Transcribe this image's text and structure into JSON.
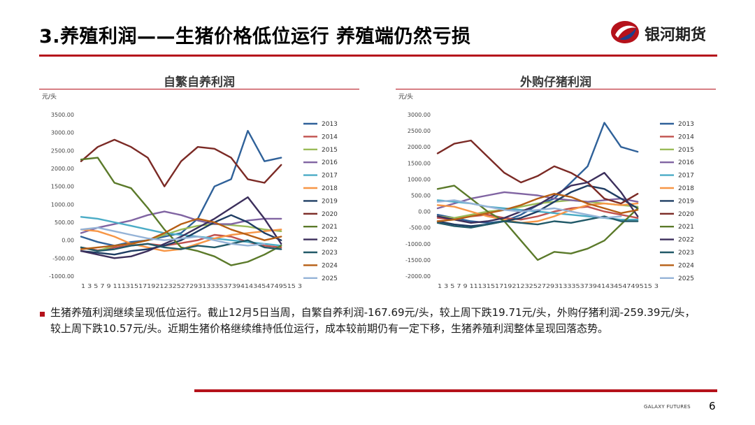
{
  "header": {
    "title": "3.养殖利润——生猪价格低位运行 养殖端仍然亏损",
    "brand": "银河期货",
    "brand_color": "#b5121b"
  },
  "chart_data": [
    {
      "type": "line",
      "title": "自繁自养利润",
      "ylabel": "元/头",
      "ylim": [
        -1000,
        3500
      ],
      "y_ticks": [
        "3500.00",
        "3000.00",
        "2500.00",
        "2000.00",
        "1500.00",
        "1000.00",
        "500.00",
        "0.00",
        "-500.00",
        "-1000.00"
      ],
      "x_ticks_label": "1 3 5 7 9 1113151719212325272931333537394143454749515 3",
      "x": [
        1,
        5,
        9,
        13,
        17,
        21,
        25,
        29,
        33,
        37,
        41,
        45,
        49,
        53
      ],
      "series": [
        {
          "name": "2013",
          "color": "#2f6199",
          "values": [
            100,
            -50,
            -150,
            -50,
            0,
            100,
            200,
            600,
            1500,
            1700,
            3050,
            2200,
            2300,
            null
          ]
        },
        {
          "name": "2014",
          "color": "#c0504d",
          "values": [
            -200,
            -280,
            -200,
            -150,
            -100,
            -150,
            -80,
            0,
            150,
            100,
            -50,
            -150,
            -200,
            null
          ]
        },
        {
          "name": "2015",
          "color": "#9bbb59",
          "values": [
            -200,
            -300,
            -150,
            -100,
            0,
            150,
            300,
            400,
            450,
            420,
            380,
            300,
            250,
            null
          ]
        },
        {
          "name": "2016",
          "color": "#8064a2",
          "values": [
            200,
            350,
            450,
            550,
            700,
            800,
            700,
            550,
            450,
            450,
            550,
            600,
            600,
            null
          ]
        },
        {
          "name": "2017",
          "color": "#4bacc6",
          "values": [
            650,
            600,
            500,
            400,
            300,
            200,
            150,
            100,
            50,
            0,
            -50,
            -100,
            -150,
            null
          ]
        },
        {
          "name": "2018",
          "color": "#f79646",
          "values": [
            300,
            250,
            100,
            -100,
            -200,
            -300,
            -250,
            -100,
            50,
            150,
            200,
            250,
            300,
            null
          ]
        },
        {
          "name": "2019",
          "color": "#1f3d63",
          "values": [
            -300,
            -350,
            -400,
            -300,
            -250,
            -150,
            0,
            250,
            500,
            700,
            500,
            200,
            0,
            null
          ]
        },
        {
          "name": "2020",
          "color": "#7b2a25",
          "values": [
            2200,
            2600,
            2800,
            2600,
            2300,
            1500,
            2200,
            2600,
            2550,
            2300,
            1700,
            1600,
            2100,
            null
          ]
        },
        {
          "name": "2021",
          "color": "#5b7a2a",
          "values": [
            2250,
            2300,
            1600,
            1450,
            900,
            300,
            -200,
            -300,
            -450,
            -700,
            -600,
            -400,
            -150,
            null
          ]
        },
        {
          "name": "2022",
          "color": "#3c2f5c",
          "values": [
            -300,
            -400,
            -500,
            -450,
            -300,
            -100,
            100,
            350,
            600,
            900,
            1200,
            600,
            -100,
            null
          ]
        },
        {
          "name": "2023",
          "color": "#215968",
          "values": [
            -200,
            -300,
            -250,
            -150,
            -100,
            -200,
            -250,
            -150,
            -200,
            -100,
            0,
            -200,
            -250,
            null
          ]
        },
        {
          "name": "2024",
          "color": "#b65e14",
          "values": [
            -250,
            -200,
            -150,
            -100,
            0,
            200,
            450,
            600,
            500,
            300,
            150,
            0,
            100,
            null
          ]
        },
        {
          "name": "2025",
          "color": "#95b3d7",
          "values": [
            300,
            350,
            250,
            150,
            50,
            0,
            50,
            100,
            0,
            -100,
            -150,
            -100,
            null,
            null
          ]
        }
      ]
    },
    {
      "type": "line",
      "title": "外购仔猪利润",
      "ylabel": "元/头",
      "ylim": [
        -2000,
        3000
      ],
      "y_ticks": [
        "3000.00",
        "2500.00",
        "2000.00",
        "1500.00",
        "1000.00",
        "500.00",
        "0.00",
        "-500.00",
        "-1000.00",
        "-1500.00",
        "-2000.00"
      ],
      "x_ticks_label": "1 3 5 7 9 1113151719212325272931333537394143454749515 3",
      "x": [
        1,
        5,
        9,
        13,
        17,
        21,
        25,
        29,
        33,
        37,
        41,
        45,
        49,
        53
      ],
      "series": [
        {
          "name": "2013",
          "color": "#2f6199",
          "values": [
            -100,
            -200,
            -300,
            -350,
            -300,
            -100,
            200,
            400,
            900,
            1400,
            2750,
            2000,
            1850,
            null
          ]
        },
        {
          "name": "2014",
          "color": "#c0504d",
          "values": [
            -200,
            -250,
            -150,
            -100,
            -200,
            -250,
            -150,
            0,
            100,
            150,
            0,
            -100,
            -200,
            null
          ]
        },
        {
          "name": "2015",
          "color": "#9bbb59",
          "values": [
            -150,
            -200,
            -100,
            0,
            50,
            150,
            250,
            300,
            350,
            300,
            250,
            200,
            150,
            null
          ]
        },
        {
          "name": "2016",
          "color": "#8064a2",
          "values": [
            100,
            250,
            400,
            500,
            600,
            550,
            500,
            400,
            350,
            300,
            350,
            400,
            300,
            null
          ]
        },
        {
          "name": "2017",
          "color": "#4bacc6",
          "values": [
            350,
            300,
            250,
            150,
            100,
            50,
            0,
            -50,
            -100,
            -150,
            -200,
            -250,
            -250,
            null
          ]
        },
        {
          "name": "2018",
          "color": "#f79646",
          "values": [
            200,
            150,
            0,
            -150,
            -250,
            -350,
            -300,
            -150,
            50,
            200,
            250,
            200,
            250,
            null
          ]
        },
        {
          "name": "2019",
          "color": "#1f3d63",
          "values": [
            -300,
            -400,
            -450,
            -400,
            -300,
            -200,
            0,
            300,
            600,
            800,
            700,
            400,
            100,
            null
          ]
        },
        {
          "name": "2020",
          "color": "#7b2a25",
          "values": [
            1800,
            2100,
            2200,
            1700,
            1200,
            900,
            1100,
            1400,
            1200,
            900,
            400,
            250,
            550,
            null
          ]
        },
        {
          "name": "2021",
          "color": "#5b7a2a",
          "values": [
            700,
            800,
            400,
            0,
            -300,
            -900,
            -1500,
            -1250,
            -1300,
            -1150,
            -900,
            -400,
            100,
            null
          ]
        },
        {
          "name": "2022",
          "color": "#3c2f5c",
          "values": [
            -150,
            -250,
            -350,
            -300,
            -200,
            0,
            200,
            500,
            800,
            900,
            1200,
            600,
            -150,
            null
          ]
        },
        {
          "name": "2023",
          "color": "#215968",
          "values": [
            -350,
            -450,
            -500,
            -400,
            -300,
            -350,
            -400,
            -300,
            -350,
            -250,
            -150,
            -300,
            -300,
            null
          ]
        },
        {
          "name": "2024",
          "color": "#b65e14",
          "values": [
            -300,
            -250,
            -150,
            -50,
            50,
            200,
            400,
            550,
            450,
            250,
            100,
            -50,
            50,
            null
          ]
        },
        {
          "name": "2025",
          "color": "#95b3d7",
          "values": [
            300,
            350,
            250,
            150,
            50,
            0,
            50,
            100,
            0,
            -100,
            -200,
            -150,
            null,
            null
          ]
        }
      ]
    }
  ],
  "body_text": "生猪养殖利润继续呈现低位运行。截止12月5日当周，自繁自养利润-167.69元/头，较上周下跌19.71元/头，外购仔猪利润-259.39元/头，较上周下跌10.57元/头。近期生猪价格继续维持低位运行，成本较前期仍有一定下移，生猪养殖利润整体呈现回落态势。",
  "footer": {
    "label": "GALAXY FUTURES",
    "page": "6"
  }
}
